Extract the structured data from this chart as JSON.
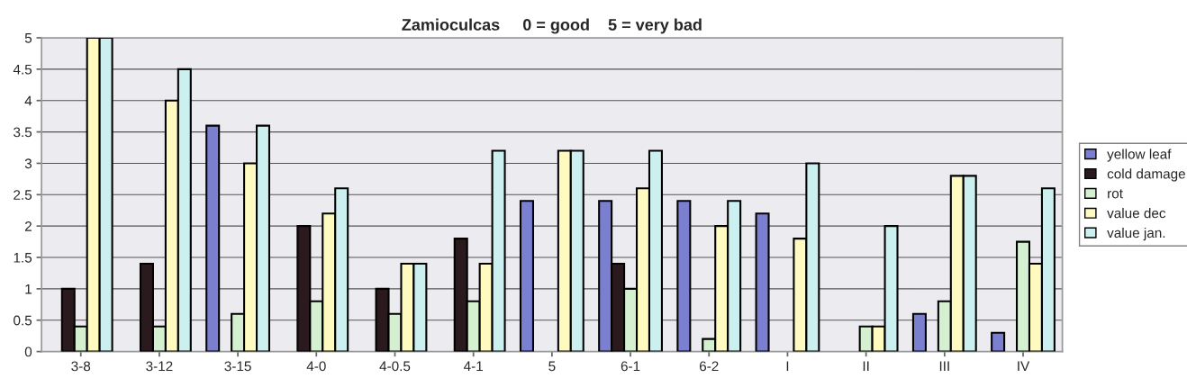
{
  "chart_data": {
    "type": "bar",
    "title": "Zamioculcas     0 = good    5 = very bad",
    "categories": [
      "3-8",
      "3-12",
      "3-15",
      "4-0",
      "4-0.5",
      "4-1",
      "5",
      "6-1",
      "6-2",
      "I",
      "II",
      "III",
      "IV"
    ],
    "series": [
      {
        "name": "yellow leaf",
        "color": "#7b7fd0",
        "values": [
          null,
          null,
          3.6,
          null,
          null,
          null,
          2.4,
          2.4,
          2.4,
          2.2,
          null,
          0.6,
          0.3
        ]
      },
      {
        "name": "cold damage",
        "color": "#2a1a1e",
        "values": [
          1,
          1.4,
          null,
          2,
          1,
          1.8,
          null,
          1.4,
          null,
          null,
          null,
          null,
          null
        ]
      },
      {
        "name": "rot",
        "color": "#d4f0d0",
        "values": [
          0.4,
          0.4,
          0.6,
          0.8,
          0.6,
          0.8,
          null,
          1,
          0.2,
          null,
          0.4,
          0.8,
          1.75
        ]
      },
      {
        "name": "value dec",
        "color": "#fffbc0",
        "values": [
          5,
          4,
          3,
          2.2,
          1.4,
          1.4,
          3.2,
          2.6,
          2,
          1.8,
          0.4,
          2.8,
          1.4
        ]
      },
      {
        "name": "value jan.",
        "color": "#ccf0f0",
        "values": [
          5,
          4.5,
          3.6,
          2.6,
          1.4,
          3.2,
          3.2,
          3.2,
          2.4,
          3,
          2,
          2.8,
          2.6
        ]
      }
    ],
    "ylim": [
      0,
      5
    ],
    "yticks": [
      0,
      0.5,
      1,
      1.5,
      2,
      2.5,
      3,
      3.5,
      4,
      4.5,
      5
    ],
    "grid": "y",
    "legend": "right"
  }
}
